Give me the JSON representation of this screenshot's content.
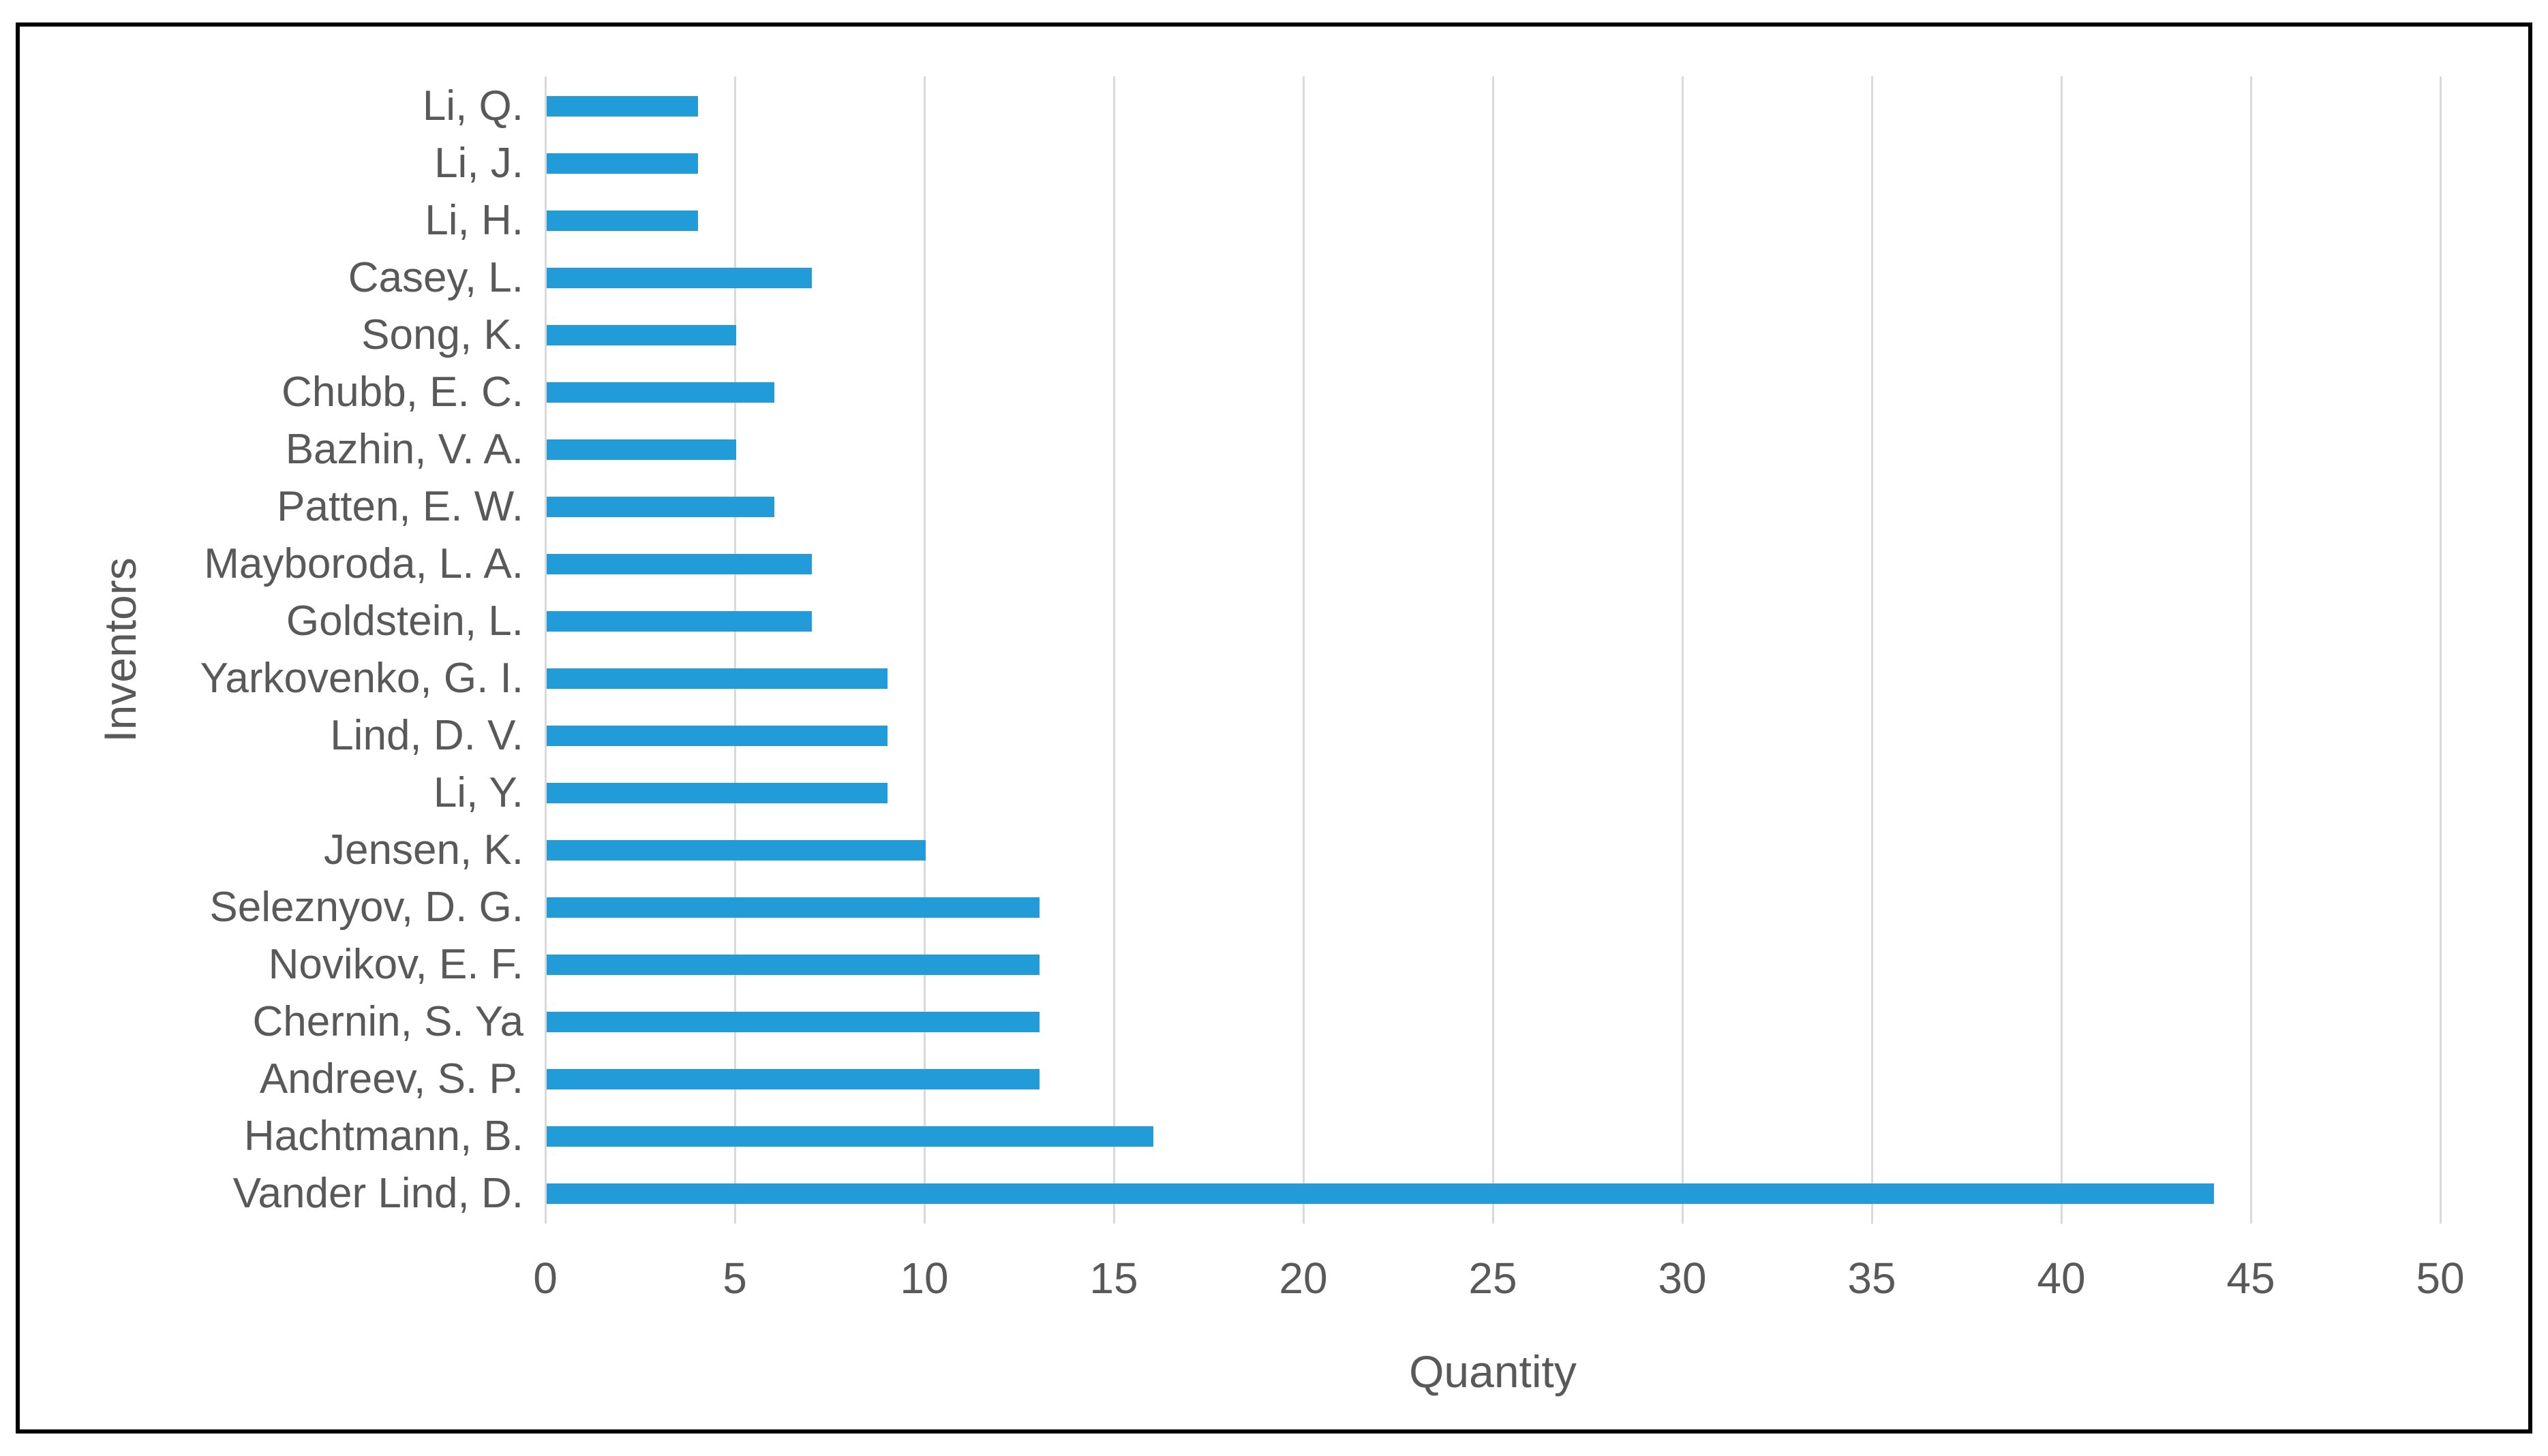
{
  "chart_data": {
    "type": "bar",
    "orientation": "horizontal",
    "xlabel": "Quantity",
    "ylabel": "Inventors",
    "categories": [
      "Li, Q.",
      "Li, J.",
      "Li, H.",
      "Casey, L.",
      "Song, K.",
      "Chubb, E. C.",
      "Bazhin, V. A.",
      "Patten, E. W.",
      "Mayboroda, L. A.",
      "Goldstein, L.",
      "Yarkovenko, G. I.",
      "Lind, D. V.",
      "Li, Y.",
      "Jensen, K.",
      "Seleznyov, D. G.",
      "Novikov, E. F.",
      "Chernin, S. Ya",
      "Andreev, S. P.",
      "Hachtmann, B.",
      "Vander Lind, D."
    ],
    "values": [
      4,
      4,
      4,
      7,
      5,
      6,
      5,
      6,
      7,
      7,
      9,
      9,
      9,
      10,
      13,
      13,
      13,
      13,
      16,
      44
    ],
    "xlim": [
      0,
      50
    ],
    "xticks": [
      0,
      5,
      10,
      15,
      20,
      25,
      30,
      35,
      40,
      45,
      50
    ],
    "grid": "vertical-gridlines-on",
    "legend": "none",
    "colors": {
      "bar": "#219cd8",
      "text": "#595959",
      "gridline": "#d9d9d9",
      "frame": "#000000"
    }
  }
}
